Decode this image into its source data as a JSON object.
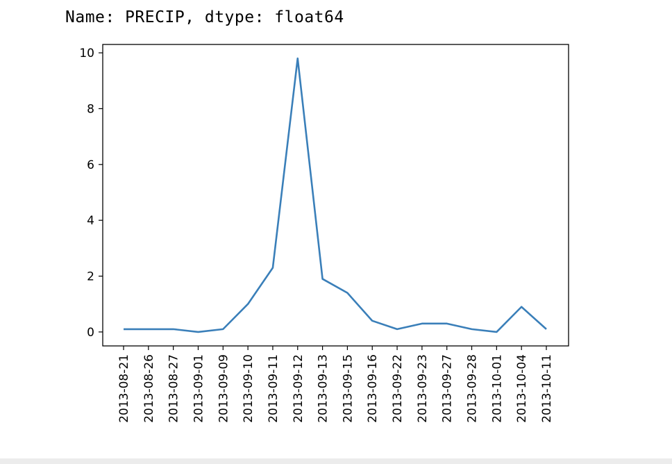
{
  "output": {
    "header": "Name: PRECIP, dtype: float64"
  },
  "chart_data": {
    "type": "line",
    "title": "",
    "xlabel": "",
    "ylabel": "",
    "categories": [
      "2013-08-21",
      "2013-08-26",
      "2013-08-27",
      "2013-09-01",
      "2013-09-09",
      "2013-09-10",
      "2013-09-11",
      "2013-09-12",
      "2013-09-13",
      "2013-09-15",
      "2013-09-16",
      "2013-09-22",
      "2013-09-23",
      "2013-09-27",
      "2013-09-28",
      "2013-10-01",
      "2013-10-04",
      "2013-10-11"
    ],
    "series": [
      {
        "values": [
          0.1,
          0.1,
          0.1,
          0.0,
          0.1,
          1.0,
          2.3,
          9.8,
          1.9,
          1.4,
          0.4,
          0.1,
          0.3,
          0.3,
          0.1,
          0.0,
          0.9,
          0.1
        ],
        "color": "#3a7fb9"
      }
    ],
    "yticks": [
      0,
      2,
      4,
      6,
      8,
      10
    ],
    "ylim": [
      -0.5,
      10.3
    ],
    "grid": false,
    "legend": "none"
  }
}
